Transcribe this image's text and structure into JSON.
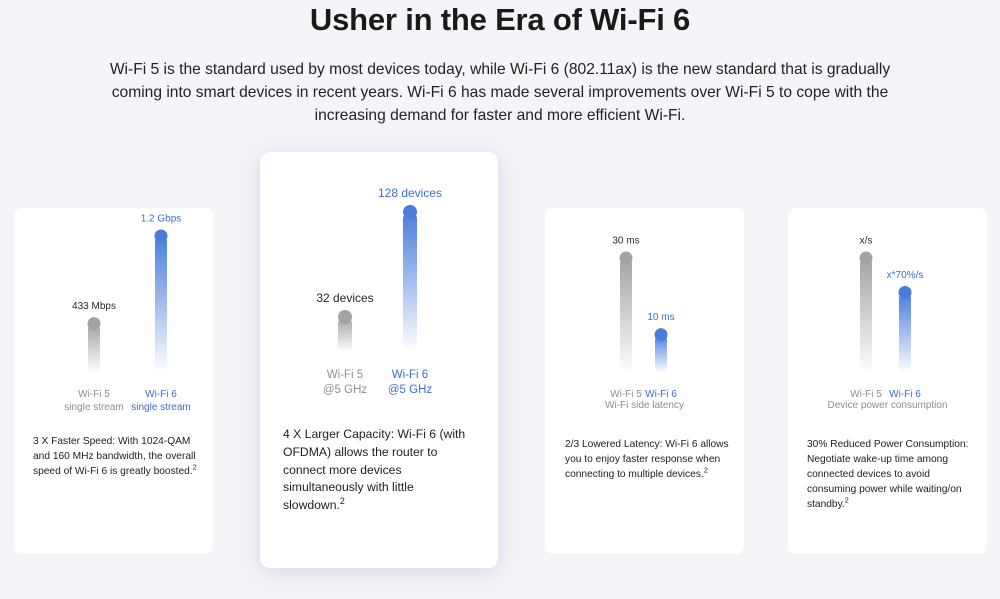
{
  "page": {
    "title": "Usher in the Era of Wi-Fi 6",
    "intro": "Wi-Fi 5 is the standard used by most devices today, while Wi-Fi 6 (802.11ax) is the new standard that is gradually coming into smart devices in recent years. Wi-Fi 6 has made several improvements over Wi-Fi 5 to cope with the increasing demand for faster and more efficient Wi-Fi."
  },
  "colors": {
    "wifi5": "#a3a3a3",
    "wifi6": "#4a7ddb",
    "accent_text": "#3b6fd0"
  },
  "chart_data": [
    {
      "type": "bar",
      "categories": [
        "Wi-Fi 5\nsingle stream",
        "Wi-Fi 6\nsingle stream"
      ],
      "category_lines": [
        [
          "Wi-Fi 5",
          "single stream"
        ],
        [
          "Wi-Fi 6",
          "single stream"
        ]
      ],
      "values": [
        433,
        1200
      ],
      "value_labels": [
        "433 Mbps",
        "1.2 Gbps"
      ],
      "caption": "",
      "description": "3 X Faster Speed: With 1024-QAM and 160 MHz bandwidth, the overall speed of Wi-Fi 6 is greatly boosted.",
      "footnote": "2"
    },
    {
      "type": "bar",
      "categories": [
        "Wi-Fi 5\n@5 GHz",
        "Wi-Fi 6\n@5 GHz"
      ],
      "category_lines": [
        [
          "Wi-Fi 5",
          "@5 GHz"
        ],
        [
          "Wi-Fi 6",
          "@5 GHz"
        ]
      ],
      "values": [
        32,
        128
      ],
      "value_labels": [
        "32 devices",
        "128 devices"
      ],
      "caption": "",
      "description": "4 X Larger Capacity: Wi-Fi 6 (with OFDMA) allows the router to connect more devices simultaneously with little slowdown.",
      "footnote": "2"
    },
    {
      "type": "bar",
      "categories": [
        "Wi-Fi 5",
        "Wi-Fi 6"
      ],
      "category_lines": [
        [
          "Wi-Fi 5"
        ],
        [
          "Wi-Fi 6"
        ]
      ],
      "values": [
        30,
        10
      ],
      "value_labels": [
        "30 ms",
        "10 ms"
      ],
      "caption": "Wi-Fi side latency",
      "description": "2/3 Lowered Latency: Wi-Fi 6 allows you to enjoy faster response when connecting to multiple devices.",
      "footnote": "2"
    },
    {
      "type": "bar",
      "categories": [
        "Wi-Fi 5",
        "Wi-Fi 6"
      ],
      "category_lines": [
        [
          "Wi-Fi 5"
        ],
        [
          "Wi-Fi 6"
        ]
      ],
      "values": [
        1,
        0.7
      ],
      "value_labels": [
        "x/s",
        "x*70%/s"
      ],
      "caption": "Device power consumption",
      "description": "30% Reduced Power Consumption: Negotiate wake-up time among connected devices to avoid consuming power while waiting/on standby.",
      "footnote": "2"
    }
  ]
}
